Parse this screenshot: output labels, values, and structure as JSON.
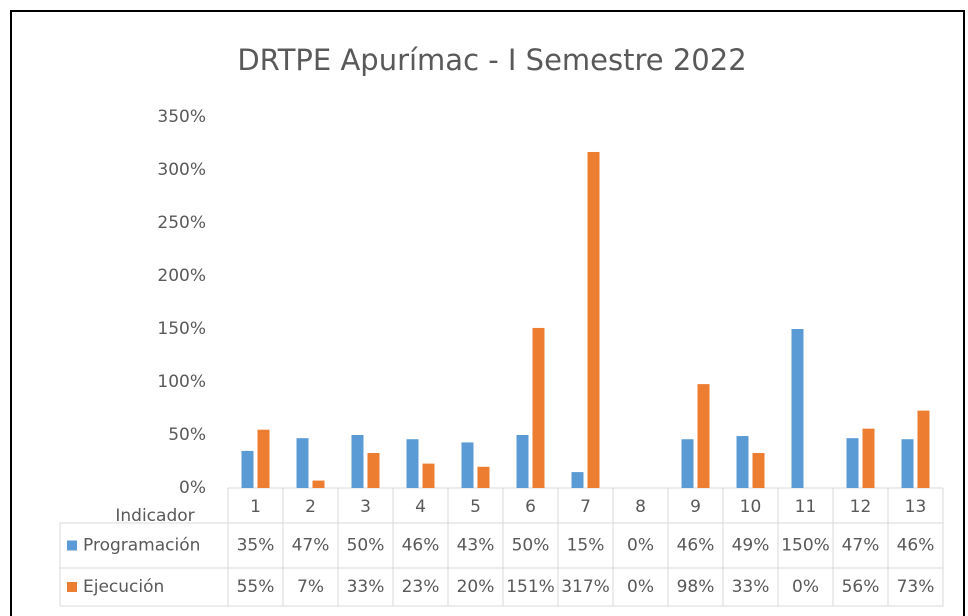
{
  "chart_data": {
    "type": "bar",
    "title": "DRTPE Apurímac - I Semestre 2022",
    "x_label": "Indicador",
    "categories": [
      "1",
      "2",
      "3",
      "4",
      "5",
      "6",
      "7",
      "8",
      "9",
      "10",
      "11",
      "12",
      "13"
    ],
    "series": [
      {
        "name": "Programación",
        "color": "#5b9bd5",
        "values": [
          35,
          47,
          50,
          46,
          43,
          50,
          15,
          0,
          46,
          49,
          150,
          47,
          46
        ],
        "value_labels": [
          "35%",
          "47%",
          "50%",
          "46%",
          "43%",
          "50%",
          "15%",
          "0%",
          "46%",
          "49%",
          "150%",
          "47%",
          "46%"
        ]
      },
      {
        "name": "Ejecución",
        "color": "#ed7d31",
        "values": [
          55,
          7,
          33,
          23,
          20,
          151,
          317,
          0,
          98,
          33,
          0,
          56,
          73
        ],
        "value_labels": [
          "55%",
          "7%",
          "33%",
          "23%",
          "20%",
          "151%",
          "317%",
          "0%",
          "98%",
          "33%",
          "0%",
          "56%",
          "73%"
        ]
      }
    ],
    "ylim": [
      0,
      350
    ],
    "yticks": [
      {
        "value": 0,
        "label": "0%"
      },
      {
        "value": 50,
        "label": "50%"
      },
      {
        "value": 100,
        "label": "100%"
      },
      {
        "value": 150,
        "label": "150%"
      },
      {
        "value": 200,
        "label": "200%"
      },
      {
        "value": 250,
        "label": "250%"
      },
      {
        "value": 300,
        "label": "300%"
      },
      {
        "value": 350,
        "label": "350%"
      }
    ],
    "grid": false
  }
}
